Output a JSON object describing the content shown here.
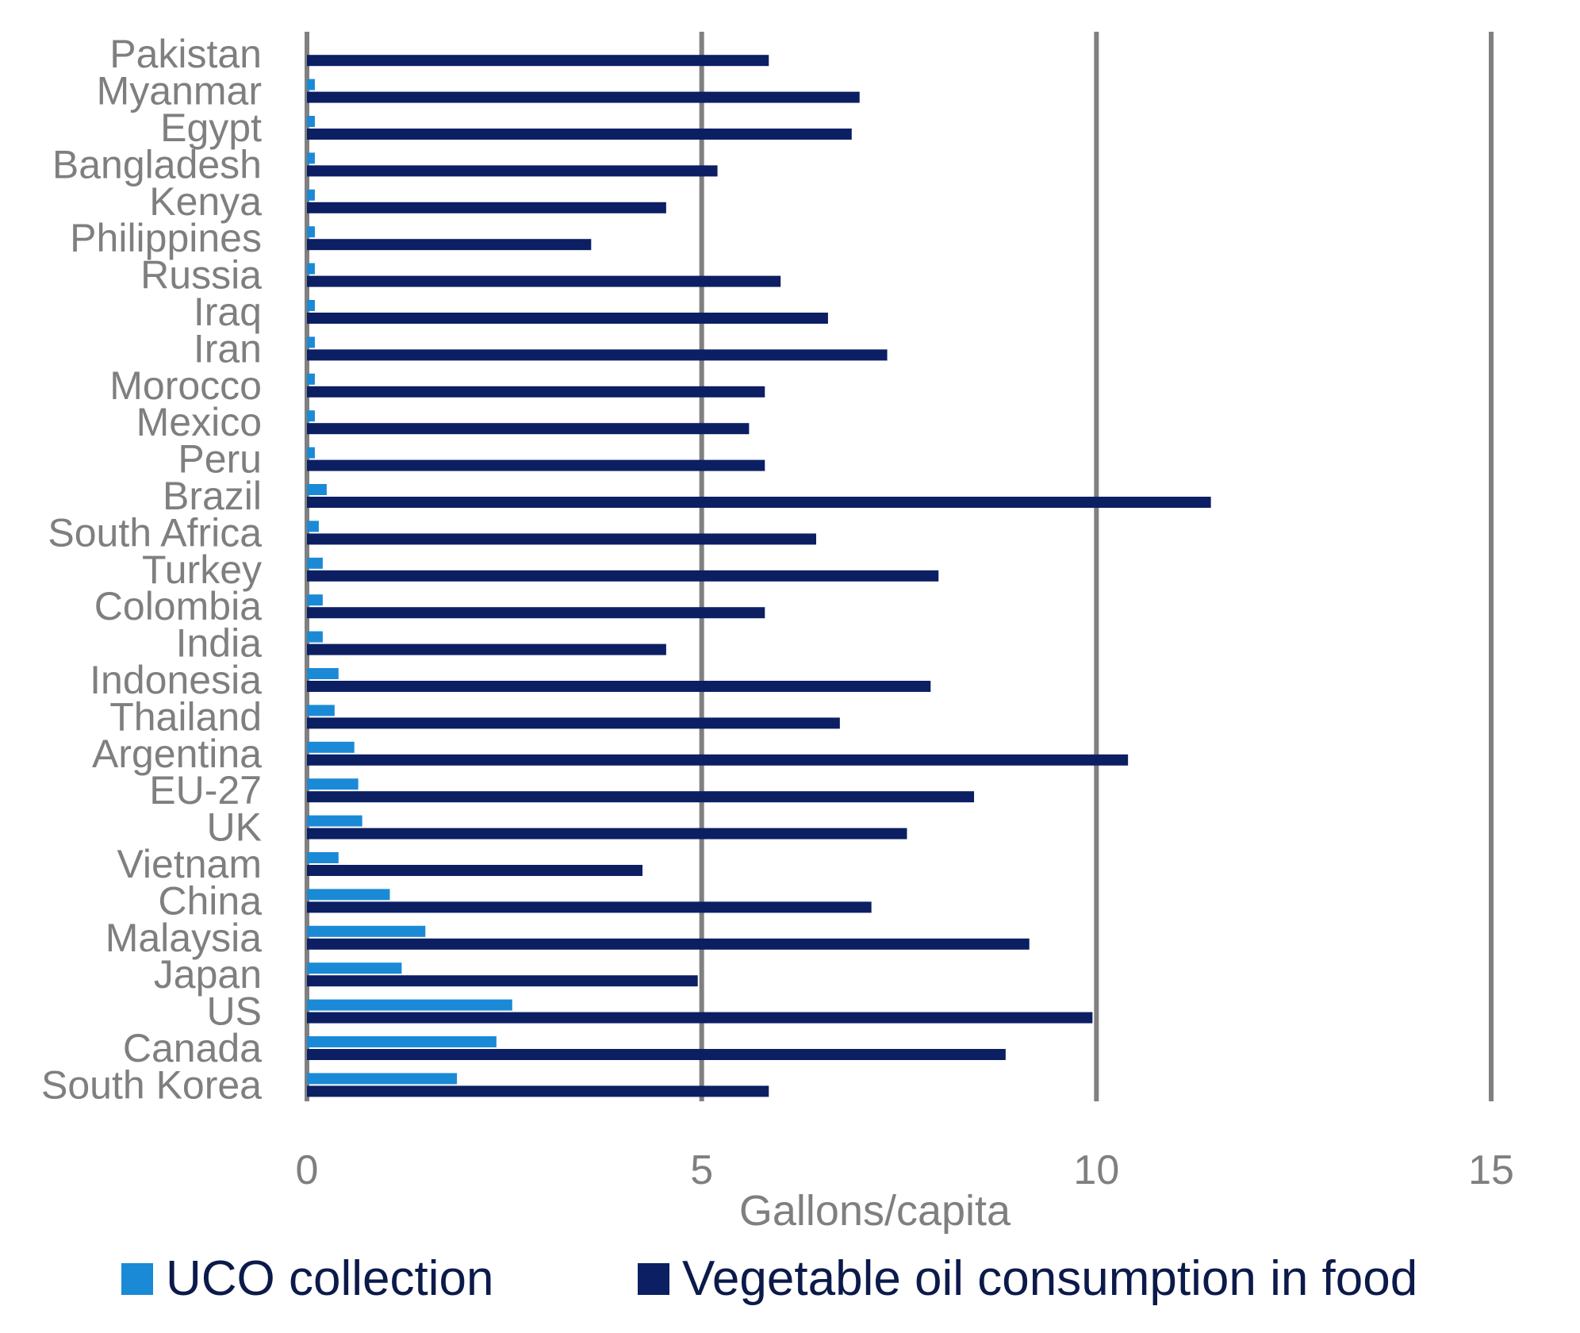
{
  "chart_data": {
    "type": "bar",
    "orientation": "horizontal",
    "title": "",
    "xlabel": "Gallons/capita",
    "ylabel": "",
    "xlim": [
      0,
      15
    ],
    "xticks": [
      0,
      5,
      10,
      15
    ],
    "grid": "vertical",
    "legend_position": "bottom",
    "categories": [
      "Pakistan",
      "Myanmar",
      "Egypt",
      "Bangladesh",
      "Kenya",
      "Philippines",
      "Russia",
      "Iraq",
      "Iran",
      "Morocco",
      "Mexico",
      "Peru",
      "Brazil",
      "South Africa",
      "Turkey",
      "Colombia",
      "India",
      "Indonesia",
      "Thailand",
      "Argentina",
      "EU-27",
      "UK",
      "Vietnam",
      "China",
      "Malaysia",
      "Japan",
      "US",
      "Canada",
      "South Korea"
    ],
    "series": [
      {
        "name": "UCO collection",
        "color": "#1b8ad6",
        "values": [
          0.0,
          0.1,
          0.1,
          0.1,
          0.1,
          0.1,
          0.1,
          0.1,
          0.1,
          0.1,
          0.1,
          0.1,
          0.25,
          0.15,
          0.2,
          0.2,
          0.2,
          0.4,
          0.35,
          0.6,
          0.65,
          0.7,
          0.4,
          1.05,
          1.5,
          1.2,
          2.6,
          2.4,
          1.9
        ]
      },
      {
        "name": "Vegetable oil consumption in food",
        "color": "#0c1f63",
        "values": [
          5.85,
          7.0,
          6.9,
          5.2,
          4.55,
          3.6,
          6.0,
          6.6,
          7.35,
          5.8,
          5.6,
          5.8,
          11.45,
          6.45,
          8.0,
          5.8,
          4.55,
          7.9,
          6.75,
          10.4,
          8.45,
          7.6,
          4.25,
          7.15,
          9.15,
          4.95,
          9.95,
          8.85,
          5.85
        ]
      }
    ]
  }
}
